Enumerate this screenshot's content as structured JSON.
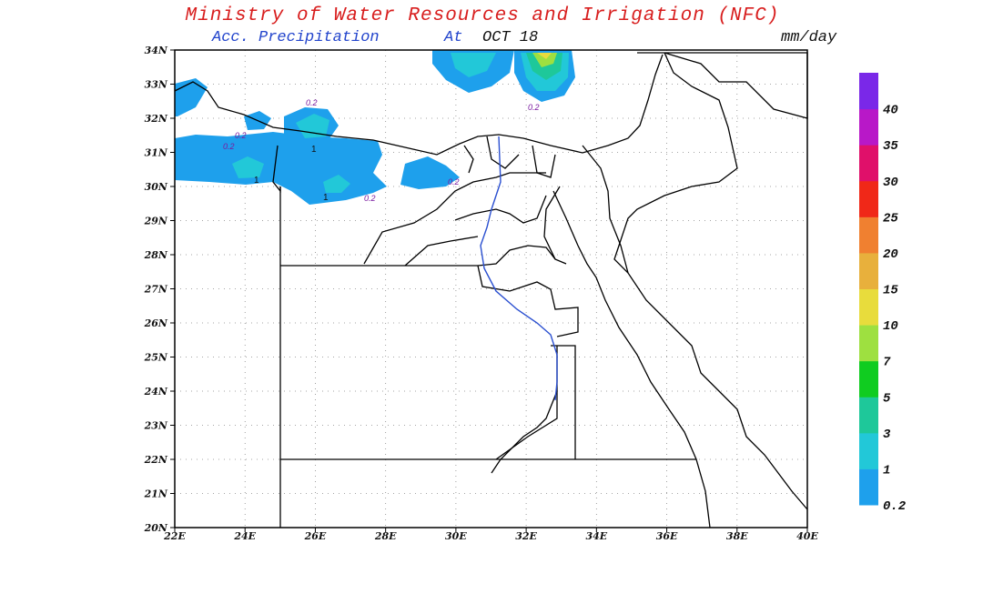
{
  "header": {
    "title": "Ministry of Water Resources and Irrigation (NFC)",
    "product": "Acc. Precipitation",
    "at": "At",
    "date": "OCT 18",
    "units": "mm/day"
  },
  "map": {
    "lat_labels": [
      "20N",
      "21N",
      "22N",
      "23N",
      "24N",
      "25N",
      "26N",
      "27N",
      "28N",
      "29N",
      "30N",
      "31N",
      "32N",
      "33N",
      "34N"
    ],
    "lon_labels": [
      "22E",
      "24E",
      "26E",
      "28E",
      "30E",
      "32E",
      "34E",
      "36E",
      "38E",
      "40E"
    ],
    "contour_labels": [
      "0.2",
      "0.2",
      "0.2",
      "0.2",
      "0.2",
      "0.2",
      "1",
      "1",
      "1"
    ]
  },
  "legend": {
    "labels": [
      "0.2",
      "1",
      "3",
      "5",
      "7",
      "10",
      "15",
      "20",
      "25",
      "30",
      "35",
      "40"
    ],
    "colors": [
      "#1ea0ec",
      "#22c8d8",
      "#1ec89a",
      "#10cc20",
      "#9ee040",
      "#e8dc3c",
      "#e8b03c",
      "#f08030",
      "#f02818",
      "#e0106a",
      "#b818c8",
      "#7a28e8"
    ]
  }
}
